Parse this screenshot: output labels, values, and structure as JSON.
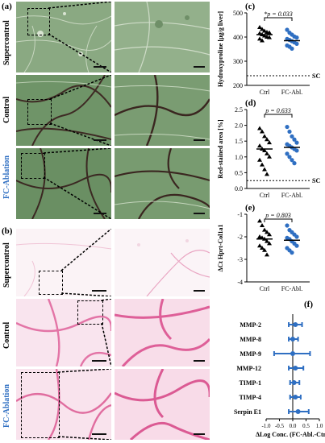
{
  "colors": {
    "sirius_green": "#5c8a5c",
    "picro_pink": "#e486b0",
    "point_blue": "#2f6fc2",
    "ablation_label": "#2f6fc2"
  },
  "panels": {
    "a": {
      "label": "(a)",
      "rows": [
        "Supercontrol",
        "Control",
        "FC-Ablation"
      ]
    },
    "b": {
      "label": "(b)",
      "rows": [
        "Supercontrol",
        "Control",
        "FC-Ablation"
      ]
    },
    "c": {
      "label": "(c)"
    },
    "d": {
      "label": "(d)"
    },
    "e": {
      "label": "(e)"
    },
    "f": {
      "label": "(f)"
    }
  },
  "chart_data": [
    {
      "id": "c",
      "type": "scatter",
      "categories": [
        "Ctrl",
        "FC-Abl."
      ],
      "ylabel": "Hydroxyproline [µg/g liver]",
      "ylim": [
        200,
        500
      ],
      "yticks": [
        "200",
        "300",
        "400",
        "500"
      ],
      "annotation": "*p = 0.033",
      "reference_label": "SC",
      "reference_value": 240,
      "series": [
        {
          "values": [
            440,
            432,
            425,
            420,
            418,
            415,
            410,
            405,
            400,
            398,
            392,
            385
          ],
          "mean": 410
        },
        {
          "values": [
            430,
            418,
            410,
            402,
            398,
            392,
            388,
            383,
            378,
            372,
            365,
            360,
            352
          ],
          "mean": 385
        }
      ]
    },
    {
      "id": "d",
      "type": "scatter",
      "categories": [
        "Ctrl",
        "FC-Abl."
      ],
      "ylabel": "Red-stained area [%]",
      "ylim": [
        0.0,
        2.5
      ],
      "yticks": [
        "0.0",
        "0.5",
        "1.0",
        "1.5",
        "2.0",
        "2.5"
      ],
      "annotation": "p = 0.633",
      "reference_label": "SC",
      "reference_value": 0.25,
      "series": [
        {
          "values": [
            1.9,
            1.8,
            1.65,
            1.55,
            1.45,
            1.35,
            1.25,
            1.2,
            1.1,
            1.0,
            0.9,
            0.75,
            0.6,
            0.45
          ],
          "mean": 1.25
        },
        {
          "values": [
            1.95,
            1.8,
            1.65,
            1.55,
            1.45,
            1.4,
            1.35,
            1.3,
            1.25,
            1.2,
            1.1,
            1.0,
            0.9,
            0.8
          ],
          "mean": 1.3
        }
      ]
    },
    {
      "id": "e",
      "type": "scatter",
      "categories": [
        "Ctrl",
        "FC-Abl."
      ],
      "ylabel": "ΔCt Hprt-Col1a1",
      "ylim": [
        -4,
        -1
      ],
      "yticks": [
        "-4",
        "-3",
        "-2",
        "-1"
      ],
      "annotation": "p = 0.803",
      "series": [
        {
          "values": [
            -1.3,
            -1.5,
            -1.7,
            -1.8,
            -1.9,
            -2.0,
            -2.05,
            -2.1,
            -2.2,
            -2.3,
            -2.4,
            -2.5,
            -2.6,
            -2.8
          ],
          "mean": -2.1
        },
        {
          "values": [
            -1.5,
            -1.7,
            -1.8,
            -1.9,
            -2.0,
            -2.05,
            -2.1,
            -2.2,
            -2.3,
            -2.4,
            -2.5,
            -2.6,
            -2.7
          ],
          "mean": -2.15
        }
      ]
    },
    {
      "id": "f",
      "type": "forest",
      "categories": [
        "MMP-2",
        "MMP-8",
        "MMP-9",
        "MMP-12",
        "TIMP-1",
        "TIMP-4",
        "Serpin E1"
      ],
      "estimate": [
        0.1,
        0.0,
        0.0,
        0.1,
        0.05,
        0.1,
        0.2
      ],
      "ci_low": [
        -0.15,
        -0.15,
        -0.7,
        -0.15,
        -0.1,
        -0.1,
        -0.15
      ],
      "ci_high": [
        0.35,
        0.2,
        0.65,
        0.4,
        0.25,
        0.3,
        0.6
      ],
      "xlim": [
        -1.0,
        1.0
      ],
      "xticks": [
        "-1.0",
        "-0.5",
        "0.0",
        "0.5",
        "1.0"
      ],
      "xlabel": "ΔLog Conc. (FC-Abl.-Ctrl)"
    }
  ]
}
